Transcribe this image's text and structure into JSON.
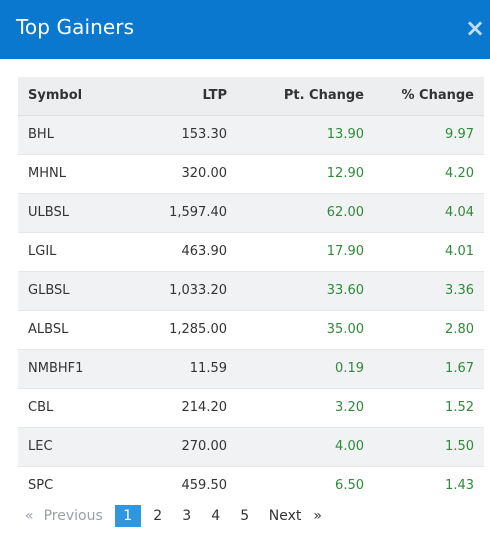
{
  "modal": {
    "title": "Top Gainers",
    "close_glyph": "×"
  },
  "table": {
    "headers": {
      "symbol": "Symbol",
      "ltp": "LTP",
      "pt_change": "Pt. Change",
      "pct_change": "% Change"
    },
    "rows": [
      {
        "symbol": "BHL",
        "ltp": "153.30",
        "pt_change": "13.90",
        "pct_change": "9.97"
      },
      {
        "symbol": "MHNL",
        "ltp": "320.00",
        "pt_change": "12.90",
        "pct_change": "4.20"
      },
      {
        "symbol": "ULBSL",
        "ltp": "1,597.40",
        "pt_change": "62.00",
        "pct_change": "4.04"
      },
      {
        "symbol": "LGIL",
        "ltp": "463.90",
        "pt_change": "17.90",
        "pct_change": "4.01"
      },
      {
        "symbol": "GLBSL",
        "ltp": "1,033.20",
        "pt_change": "33.60",
        "pct_change": "3.36"
      },
      {
        "symbol": "ALBSL",
        "ltp": "1,285.00",
        "pt_change": "35.00",
        "pct_change": "2.80"
      },
      {
        "symbol": "NMBHF1",
        "ltp": "11.59",
        "pt_change": "0.19",
        "pct_change": "1.67"
      },
      {
        "symbol": "CBL",
        "ltp": "214.20",
        "pt_change": "3.20",
        "pct_change": "1.52"
      },
      {
        "symbol": "LEC",
        "ltp": "270.00",
        "pt_change": "4.00",
        "pct_change": "1.50"
      },
      {
        "symbol": "SPC",
        "ltp": "459.50",
        "pt_change": "6.50",
        "pct_change": "1.43"
      }
    ]
  },
  "pagination": {
    "prev_glyph": "«",
    "prev_label": "Previous",
    "pages": [
      "1",
      "2",
      "3",
      "4",
      "5"
    ],
    "active_page": "1",
    "next_label": "Next",
    "next_glyph": "»"
  },
  "colors": {
    "header_bg": "#0b78d0",
    "positive": "#2e8b3a",
    "active_page": "#2f96e0"
  }
}
